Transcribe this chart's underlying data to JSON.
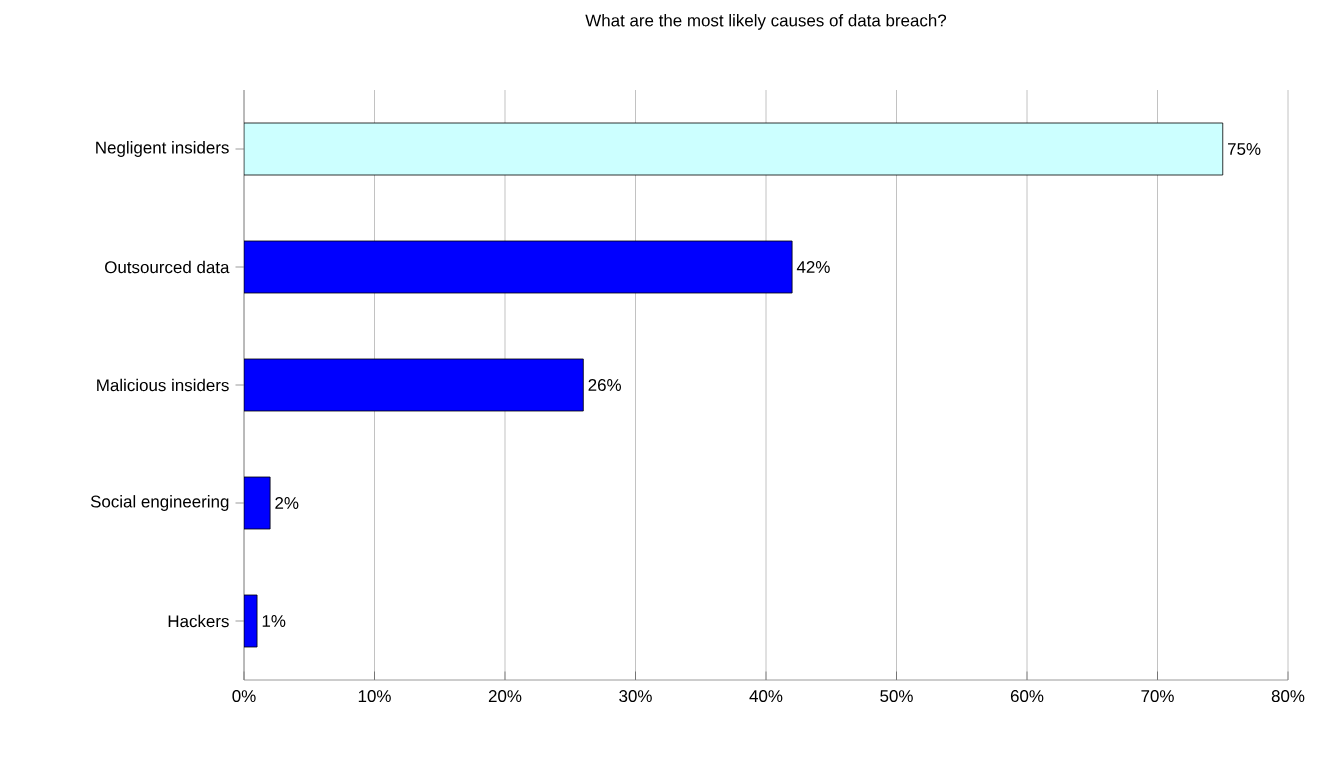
{
  "chart_data": {
    "type": "bar",
    "orientation": "horizontal",
    "title": "What are the most likely causes of data breach?",
    "categories": [
      "Negligent insiders",
      "Outsourced data",
      "Malicious insiders",
      "Social engineering",
      "Hackers"
    ],
    "values": [
      75,
      42,
      26,
      2,
      1
    ],
    "colors": [
      "#ccffff",
      "#0000ff",
      "#0000ff",
      "#0000ff",
      "#0000ff"
    ],
    "value_labels": [
      "75%",
      "42%",
      "26%",
      "2%",
      "1%"
    ],
    "xlim": [
      0,
      80
    ],
    "xticks": [
      {
        "value": 0,
        "label": "0%"
      },
      {
        "value": 10,
        "label": "10%"
      },
      {
        "value": 20,
        "label": "20%"
      },
      {
        "value": 30,
        "label": "30%"
      },
      {
        "value": 40,
        "label": "40%"
      },
      {
        "value": 50,
        "label": "50%"
      },
      {
        "value": 60,
        "label": "60%"
      },
      {
        "value": 70,
        "label": "70%"
      },
      {
        "value": 80,
        "label": "80%"
      }
    ],
    "grid": "x"
  }
}
